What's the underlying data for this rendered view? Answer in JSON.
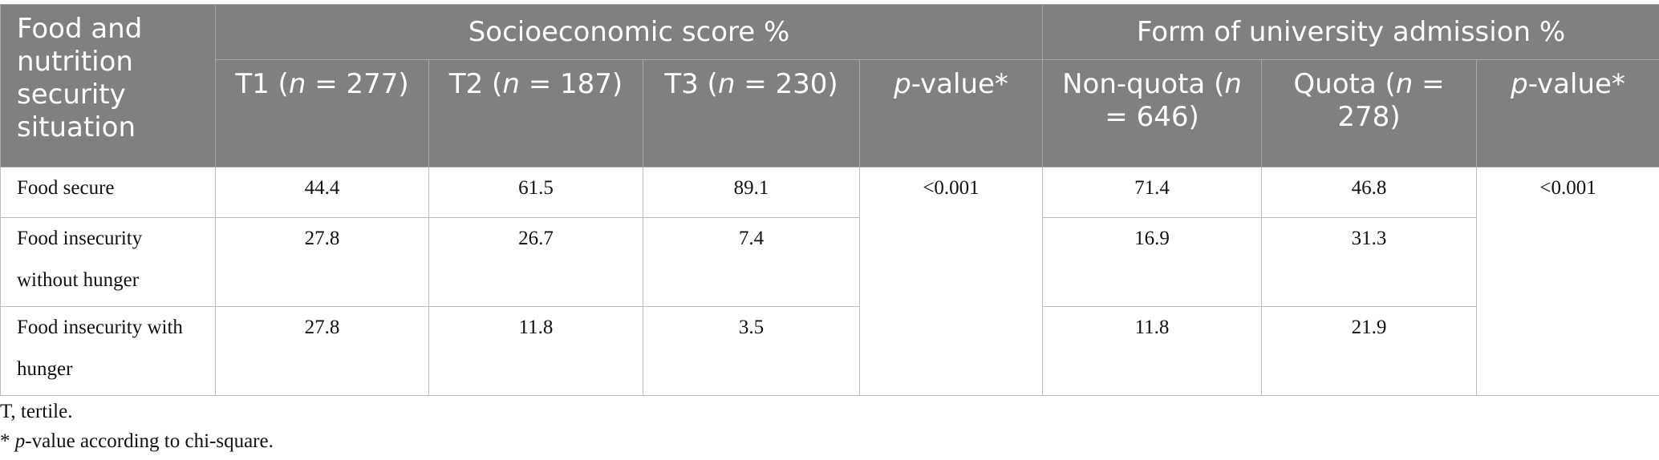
{
  "table": {
    "corner": "Food and nutrition security situation",
    "groups": [
      "Socioeconomic score %",
      "Form of university admission %"
    ],
    "columns": [
      [
        {
          "text": "T1 ("
        },
        {
          "text": "n",
          "italic": true
        },
        {
          "text": " = 277)"
        }
      ],
      [
        {
          "text": "T2 ("
        },
        {
          "text": "n",
          "italic": true
        },
        {
          "text": " = 187)"
        }
      ],
      [
        {
          "text": "T3 ("
        },
        {
          "text": "n",
          "italic": true
        },
        {
          "text": " = 230)"
        }
      ],
      [
        {
          "text": "p",
          "italic": true
        },
        {
          "text": "-value*"
        }
      ],
      [
        {
          "text": "Non-quota ("
        },
        {
          "text": "n",
          "italic": true
        },
        {
          "text": " = 646)"
        }
      ],
      [
        {
          "text": "Quota ("
        },
        {
          "text": "n",
          "italic": true
        },
        {
          "text": " = 278)"
        }
      ],
      [
        {
          "text": "p",
          "italic": true
        },
        {
          "text": "-value*"
        }
      ]
    ],
    "rows": [
      {
        "label": "Food secure",
        "values": [
          "44.4",
          "61.5",
          "89.1",
          "71.4",
          "46.8"
        ]
      },
      {
        "label": "Food insecurity without hunger",
        "values": [
          "27.8",
          "26.7",
          "7.4",
          "16.9",
          "31.3"
        ]
      },
      {
        "label": "Food insecurity with hunger",
        "values": [
          "27.8",
          "11.8",
          "3.5",
          "11.8",
          "21.9"
        ]
      }
    ],
    "p_values": [
      "<0.001",
      "<0.001"
    ]
  },
  "notes": [
    [
      {
        "text": "T, tertile."
      }
    ],
    [
      {
        "text": "* "
      },
      {
        "text": "p",
        "italic": true
      },
      {
        "text": "-value according to chi-square."
      }
    ]
  ]
}
